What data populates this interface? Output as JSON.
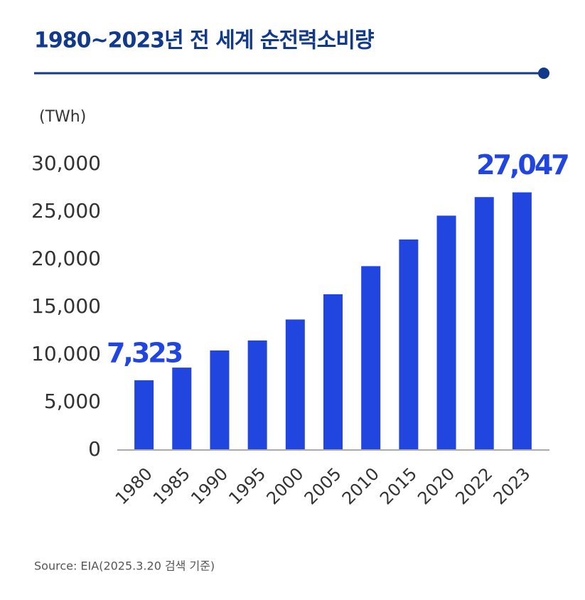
{
  "chart_data": {
    "type": "bar",
    "title": "1980~2023년 전 세계 순전력소비량",
    "y_axis_label": "(TWh)",
    "source": "Source: EIA(2025.3.20 검색 기준)",
    "categories": [
      "1980",
      "1985",
      "1990",
      "1995",
      "2000",
      "2005",
      "2010",
      "2015",
      "2020",
      "2022",
      "2023"
    ],
    "values": [
      7323,
      8650,
      10450,
      11500,
      13700,
      16350,
      19300,
      22100,
      24600,
      26550,
      27047
    ],
    "value_labels": [
      "7,323",
      null,
      null,
      null,
      null,
      null,
      null,
      null,
      null,
      null,
      "27,047"
    ],
    "color": "#2146e0",
    "ylim": [
      0,
      30000
    ],
    "yticks": [
      0,
      {
        "value": 5000,
        "label": "5,000"
      },
      {
        "value": 10000,
        "label": "10,000"
      },
      {
        "value": 15000,
        "label": "15,000"
      },
      {
        "value": 20000,
        "label": "20,000"
      },
      {
        "value": 25000,
        "label": "25,000"
      },
      {
        "value": 30000,
        "label": "30,000"
      }
    ],
    "grid": false
  }
}
